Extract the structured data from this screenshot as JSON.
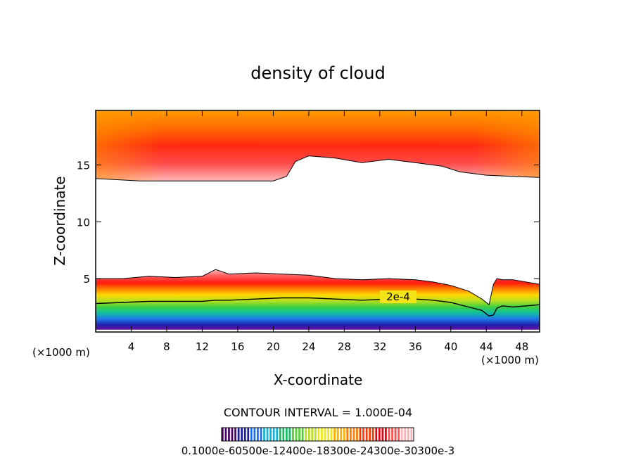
{
  "chart_data": {
    "type": "contour",
    "title": "density of cloud",
    "xlabel": "X-coordinate",
    "ylabel": "Z-coordinate",
    "x_unit_left": "(×1000 m)",
    "x_unit_right": "(×1000 m)",
    "xlim": [
      0,
      50
    ],
    "ylim": [
      0.3,
      19.8
    ],
    "x_ticks": [
      "4",
      "8",
      "12",
      "16",
      "20",
      "24",
      "28",
      "32",
      "36",
      "40",
      "44",
      "48"
    ],
    "y_ticks": [
      "5",
      "10",
      "15"
    ],
    "x_tick_values": [
      4,
      8,
      12,
      16,
      20,
      24,
      28,
      32,
      36,
      40,
      44,
      48
    ],
    "y_tick_values": [
      5,
      10,
      15
    ],
    "contour_interval_text": "CONTOUR INTERVAL = 1.000E-04",
    "contour_label": "2e-4",
    "colorbar_text": "0.1000e-60500e-12400e-18300e-24300e-30300e-3",
    "colors": [
      "#4a006a",
      "#1a1aa0",
      "#1e6ee8",
      "#12b4d8",
      "#10c060",
      "#50d030",
      "#b8e020",
      "#f0e818",
      "#ffb000",
      "#ff7a00",
      "#ff3a00",
      "#e80010",
      "#ff5050",
      "#ffb0b0"
    ],
    "upper_layer": {
      "x": [
        0,
        5,
        10,
        15,
        20,
        21.5,
        22.5,
        24,
        27,
        30,
        33,
        36,
        39,
        41,
        44,
        47,
        50
      ],
      "base_km": [
        13.8,
        13.6,
        13.6,
        13.6,
        13.6,
        14.0,
        15.3,
        15.8,
        15.6,
        15.2,
        15.5,
        15.2,
        14.9,
        14.4,
        14.1,
        14.0,
        13.9
      ],
      "top_km": 19.8
    },
    "lower_layer": {
      "x": [
        0,
        3,
        6,
        9,
        12,
        13.5,
        15,
        18,
        21,
        24,
        27,
        30,
        33,
        36,
        38,
        40,
        42,
        43.5,
        44.3,
        44.8,
        45.2,
        45.8,
        47,
        50
      ],
      "top_km": [
        5.0,
        5.0,
        5.2,
        5.1,
        5.2,
        5.8,
        5.4,
        5.5,
        5.4,
        5.3,
        5.0,
        4.9,
        5.0,
        4.9,
        4.7,
        4.4,
        3.9,
        3.2,
        2.7,
        4.5,
        5.0,
        4.9,
        4.9,
        4.5
      ],
      "contour_2e4_km": [
        2.8,
        2.9,
        3.0,
        3.0,
        3.0,
        3.1,
        3.1,
        3.2,
        3.3,
        3.3,
        3.2,
        3.1,
        3.2,
        3.2,
        3.1,
        2.9,
        2.5,
        2.2,
        1.7,
        1.8,
        2.4,
        2.6,
        2.5,
        2.7
      ],
      "base_km": 0.5
    }
  }
}
